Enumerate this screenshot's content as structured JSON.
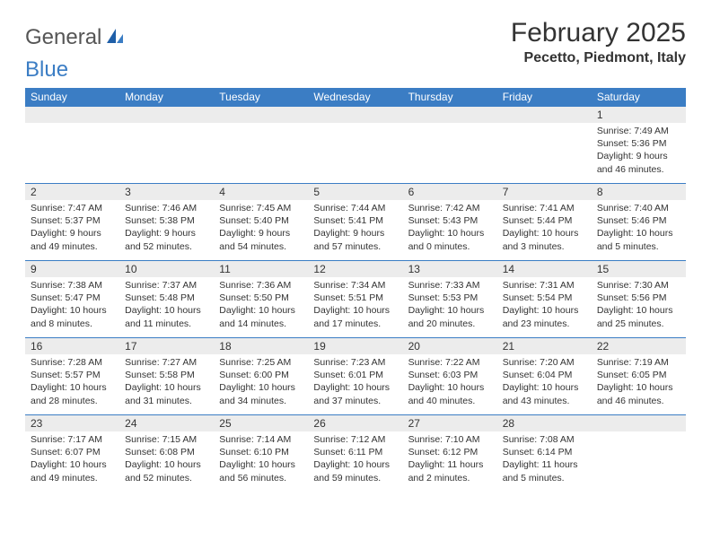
{
  "brand": {
    "part1": "General",
    "part2": "Blue"
  },
  "title": "February 2025",
  "location": "Pecetto, Piedmont, Italy",
  "colors": {
    "header_bg": "#3b7dc4",
    "header_text": "#ffffff",
    "daynum_bg": "#ececec",
    "text": "#333333",
    "row_border": "#3b7dc4"
  },
  "day_headers": [
    "Sunday",
    "Monday",
    "Tuesday",
    "Wednesday",
    "Thursday",
    "Friday",
    "Saturday"
  ],
  "weeks": [
    [
      {
        "n": "",
        "sr": "",
        "ss": "",
        "dl": ""
      },
      {
        "n": "",
        "sr": "",
        "ss": "",
        "dl": ""
      },
      {
        "n": "",
        "sr": "",
        "ss": "",
        "dl": ""
      },
      {
        "n": "",
        "sr": "",
        "ss": "",
        "dl": ""
      },
      {
        "n": "",
        "sr": "",
        "ss": "",
        "dl": ""
      },
      {
        "n": "",
        "sr": "",
        "ss": "",
        "dl": ""
      },
      {
        "n": "1",
        "sr": "Sunrise: 7:49 AM",
        "ss": "Sunset: 5:36 PM",
        "dl": "Daylight: 9 hours and 46 minutes."
      }
    ],
    [
      {
        "n": "2",
        "sr": "Sunrise: 7:47 AM",
        "ss": "Sunset: 5:37 PM",
        "dl": "Daylight: 9 hours and 49 minutes."
      },
      {
        "n": "3",
        "sr": "Sunrise: 7:46 AM",
        "ss": "Sunset: 5:38 PM",
        "dl": "Daylight: 9 hours and 52 minutes."
      },
      {
        "n": "4",
        "sr": "Sunrise: 7:45 AM",
        "ss": "Sunset: 5:40 PM",
        "dl": "Daylight: 9 hours and 54 minutes."
      },
      {
        "n": "5",
        "sr": "Sunrise: 7:44 AM",
        "ss": "Sunset: 5:41 PM",
        "dl": "Daylight: 9 hours and 57 minutes."
      },
      {
        "n": "6",
        "sr": "Sunrise: 7:42 AM",
        "ss": "Sunset: 5:43 PM",
        "dl": "Daylight: 10 hours and 0 minutes."
      },
      {
        "n": "7",
        "sr": "Sunrise: 7:41 AM",
        "ss": "Sunset: 5:44 PM",
        "dl": "Daylight: 10 hours and 3 minutes."
      },
      {
        "n": "8",
        "sr": "Sunrise: 7:40 AM",
        "ss": "Sunset: 5:46 PM",
        "dl": "Daylight: 10 hours and 5 minutes."
      }
    ],
    [
      {
        "n": "9",
        "sr": "Sunrise: 7:38 AM",
        "ss": "Sunset: 5:47 PM",
        "dl": "Daylight: 10 hours and 8 minutes."
      },
      {
        "n": "10",
        "sr": "Sunrise: 7:37 AM",
        "ss": "Sunset: 5:48 PM",
        "dl": "Daylight: 10 hours and 11 minutes."
      },
      {
        "n": "11",
        "sr": "Sunrise: 7:36 AM",
        "ss": "Sunset: 5:50 PM",
        "dl": "Daylight: 10 hours and 14 minutes."
      },
      {
        "n": "12",
        "sr": "Sunrise: 7:34 AM",
        "ss": "Sunset: 5:51 PM",
        "dl": "Daylight: 10 hours and 17 minutes."
      },
      {
        "n": "13",
        "sr": "Sunrise: 7:33 AM",
        "ss": "Sunset: 5:53 PM",
        "dl": "Daylight: 10 hours and 20 minutes."
      },
      {
        "n": "14",
        "sr": "Sunrise: 7:31 AM",
        "ss": "Sunset: 5:54 PM",
        "dl": "Daylight: 10 hours and 23 minutes."
      },
      {
        "n": "15",
        "sr": "Sunrise: 7:30 AM",
        "ss": "Sunset: 5:56 PM",
        "dl": "Daylight: 10 hours and 25 minutes."
      }
    ],
    [
      {
        "n": "16",
        "sr": "Sunrise: 7:28 AM",
        "ss": "Sunset: 5:57 PM",
        "dl": "Daylight: 10 hours and 28 minutes."
      },
      {
        "n": "17",
        "sr": "Sunrise: 7:27 AM",
        "ss": "Sunset: 5:58 PM",
        "dl": "Daylight: 10 hours and 31 minutes."
      },
      {
        "n": "18",
        "sr": "Sunrise: 7:25 AM",
        "ss": "Sunset: 6:00 PM",
        "dl": "Daylight: 10 hours and 34 minutes."
      },
      {
        "n": "19",
        "sr": "Sunrise: 7:23 AM",
        "ss": "Sunset: 6:01 PM",
        "dl": "Daylight: 10 hours and 37 minutes."
      },
      {
        "n": "20",
        "sr": "Sunrise: 7:22 AM",
        "ss": "Sunset: 6:03 PM",
        "dl": "Daylight: 10 hours and 40 minutes."
      },
      {
        "n": "21",
        "sr": "Sunrise: 7:20 AM",
        "ss": "Sunset: 6:04 PM",
        "dl": "Daylight: 10 hours and 43 minutes."
      },
      {
        "n": "22",
        "sr": "Sunrise: 7:19 AM",
        "ss": "Sunset: 6:05 PM",
        "dl": "Daylight: 10 hours and 46 minutes."
      }
    ],
    [
      {
        "n": "23",
        "sr": "Sunrise: 7:17 AM",
        "ss": "Sunset: 6:07 PM",
        "dl": "Daylight: 10 hours and 49 minutes."
      },
      {
        "n": "24",
        "sr": "Sunrise: 7:15 AM",
        "ss": "Sunset: 6:08 PM",
        "dl": "Daylight: 10 hours and 52 minutes."
      },
      {
        "n": "25",
        "sr": "Sunrise: 7:14 AM",
        "ss": "Sunset: 6:10 PM",
        "dl": "Daylight: 10 hours and 56 minutes."
      },
      {
        "n": "26",
        "sr": "Sunrise: 7:12 AM",
        "ss": "Sunset: 6:11 PM",
        "dl": "Daylight: 10 hours and 59 minutes."
      },
      {
        "n": "27",
        "sr": "Sunrise: 7:10 AM",
        "ss": "Sunset: 6:12 PM",
        "dl": "Daylight: 11 hours and 2 minutes."
      },
      {
        "n": "28",
        "sr": "Sunrise: 7:08 AM",
        "ss": "Sunset: 6:14 PM",
        "dl": "Daylight: 11 hours and 5 minutes."
      },
      {
        "n": "",
        "sr": "",
        "ss": "",
        "dl": ""
      }
    ]
  ]
}
